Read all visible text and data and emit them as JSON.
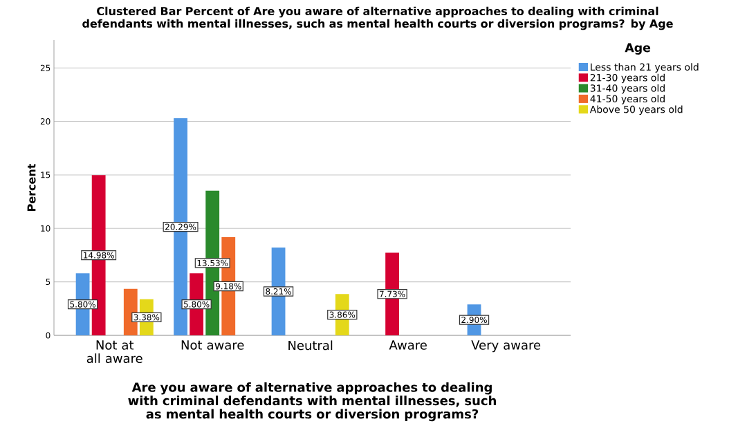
{
  "chart_data": {
    "type": "bar",
    "title": "Clustered Bar Percent of Are you aware of alternative approaches to dealing with criminal defendants with mental illnesses, such as mental health courts or diversion programs? by Age",
    "xlabel": "Are you aware of alternative approaches to dealing with criminal defendants with mental illnesses, such as mental health courts or diversion programs?",
    "ylabel": "Percent",
    "legend_title": "Age",
    "categories": [
      "Not at all aware",
      "Not aware",
      "Neutral",
      "Aware",
      "Very aware"
    ],
    "series": [
      {
        "name": "Less than 21 years old",
        "color": "#5097e4",
        "values": [
          5.8,
          20.29,
          8.21,
          null,
          2.9
        ],
        "value_labels": [
          "5.80%",
          "20.29%",
          "8.21%",
          null,
          "2.90%"
        ]
      },
      {
        "name": "21-30 years old",
        "color": "#d60032",
        "values": [
          14.98,
          5.8,
          null,
          7.73,
          null
        ],
        "value_labels": [
          "14.98%",
          "5.80%",
          null,
          "7.73%",
          null
        ]
      },
      {
        "name": "31-40 years old",
        "color": "#2a8a2c",
        "values": [
          null,
          13.53,
          null,
          null,
          null
        ],
        "value_labels": [
          null,
          "13.53%",
          null,
          null,
          null
        ]
      },
      {
        "name": "41-50 years old",
        "color": "#f06a2a",
        "values": [
          4.35,
          9.18,
          null,
          null,
          null
        ],
        "value_labels": [
          null,
          "9.18%",
          null,
          null,
          null
        ]
      },
      {
        "name": "Above 50 years old",
        "color": "#e4d81a",
        "values": [
          3.38,
          null,
          3.86,
          null,
          null
        ],
        "value_labels": [
          "3.38%",
          null,
          "3.86%",
          null,
          null
        ]
      }
    ],
    "ylim": [
      0,
      27.6
    ],
    "yticks": [
      0,
      5,
      10,
      15,
      20,
      25
    ],
    "grid": "y",
    "legend": "right"
  }
}
